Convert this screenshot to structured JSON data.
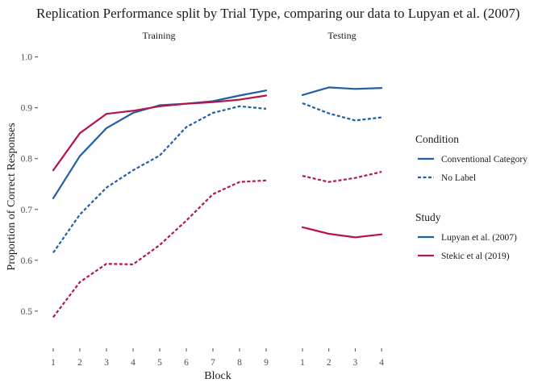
{
  "chart_data": {
    "type": "line",
    "title": "Replication Performance split by Trial Type, comparing our data to Lupyan et al. (2007)",
    "xlabel": "Block",
    "ylabel": "Proportion of Correct Responses",
    "ylim": [
      0.43,
      1.02
    ],
    "yticks": [
      "0.5",
      "0.6",
      "0.7",
      "0.8",
      "0.9",
      "1.0"
    ],
    "grid": false,
    "legend_position": "right",
    "panels": [
      {
        "name": "Training",
        "x": [
          1,
          2,
          3,
          4,
          5,
          6,
          7,
          8,
          9
        ],
        "series": [
          {
            "study": "Lupyan et al. (2007)",
            "condition": "Conventional Category",
            "values": [
              0.722,
              0.805,
              0.86,
              0.89,
              0.905,
              0.908,
              0.913,
              0.924,
              0.934
            ]
          },
          {
            "study": "Lupyan et al. (2007)",
            "condition": "No Label",
            "values": [
              0.615,
              0.69,
              0.743,
              0.777,
              0.806,
              0.862,
              0.89,
              0.903,
              0.898
            ]
          },
          {
            "study": "Stekic et al (2019)",
            "condition": "Conventional Category",
            "values": [
              0.777,
              0.85,
              0.888,
              0.894,
              0.903,
              0.908,
              0.911,
              0.916,
              0.924
            ]
          },
          {
            "study": "Stekic et al (2019)",
            "condition": "No Label",
            "values": [
              0.488,
              0.557,
              0.593,
              0.592,
              0.63,
              0.678,
              0.73,
              0.754,
              0.757
            ]
          }
        ]
      },
      {
        "name": "Testing",
        "x": [
          1,
          2,
          3,
          4
        ],
        "series": [
          {
            "study": "Lupyan et al. (2007)",
            "condition": "Conventional Category",
            "values": [
              0.925,
              0.94,
              0.937,
              0.939
            ]
          },
          {
            "study": "Lupyan et al. (2007)",
            "condition": "No Label",
            "values": [
              0.909,
              0.889,
              0.875,
              0.881
            ]
          },
          {
            "study": "Stekic et al (2019)",
            "condition": "Conventional Category",
            "values": [
              0.665,
              0.652,
              0.645,
              0.651
            ]
          },
          {
            "study": "Stekic et al (2019)",
            "condition": "No Label",
            "values": [
              0.766,
              0.754,
              0.762,
              0.774
            ]
          }
        ]
      }
    ],
    "legends": [
      {
        "title": "Condition",
        "entries": [
          {
            "label": "Conventional Category",
            "linetype": "solid"
          },
          {
            "label": "No Label",
            "linetype": "dashed"
          }
        ]
      },
      {
        "title": "Study",
        "entries": [
          {
            "label": "Lupyan et al. (2007)",
            "color": "#1f5fa8"
          },
          {
            "label": "Stekic et al (2019)",
            "color": "#b5164a"
          }
        ]
      }
    ],
    "colors": {
      "Lupyan et al. (2007)": "#1f5fa8",
      "Stekic et al (2019)": "#b5164a",
      "legend_line": "#1f5fa8"
    }
  }
}
